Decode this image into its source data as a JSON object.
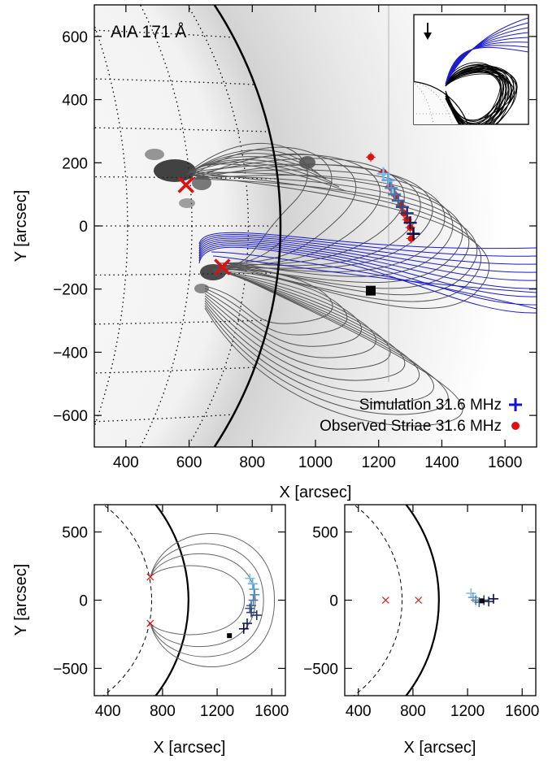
{
  "figure": {
    "main_panel": {
      "label": "AIA 171 Å",
      "xlabel": "X [arcsec]",
      "ylabel": "Y [arcsec]",
      "xlim": [
        300,
        1700
      ],
      "ylim": [
        -700,
        700
      ],
      "xticks": [
        "400",
        "600",
        "800",
        "1000",
        "1200",
        "1400",
        "1600"
      ],
      "yticks": [
        "600",
        "400",
        "200",
        "0",
        "−200",
        "−400",
        "−600"
      ],
      "legend": [
        {
          "label": "Simulation 31.6 MHz",
          "marker": "plus",
          "color": "#1515d0"
        },
        {
          "label": "Observed Striae 31.6 MHz",
          "marker": "dot",
          "color": "#e01010"
        }
      ],
      "legend_position": "bottom-right",
      "inset_icon": "arrow-down-icon"
    },
    "bottom_left_panel": {
      "xlabel": "X [arcsec]",
      "ylabel": "Y [arcsec]",
      "xticks": [
        "400",
        "800",
        "1200",
        "1600"
      ],
      "yticks": [
        "500",
        "0",
        "−500"
      ]
    },
    "bottom_right_panel": {
      "xlabel": "X [arcsec]",
      "xticks": [
        "400",
        "800",
        "1200",
        "1600"
      ],
      "yticks": [
        "500",
        "0",
        "−500"
      ]
    }
  },
  "chart_data": [
    {
      "type": "scatter",
      "panel": "main",
      "xlim": [
        300,
        1700
      ],
      "ylim": [
        -700,
        700
      ],
      "series": [
        {
          "name": "Simulation 31.6 MHz",
          "marker": "plus",
          "x": [
            1215,
            1230,
            1240,
            1250,
            1262,
            1275,
            1290,
            1300,
            1310
          ],
          "y": [
            165,
            145,
            120,
            100,
            80,
            60,
            40,
            10,
            -25
          ]
        },
        {
          "name": "Observed Striae 31.6 MHz",
          "marker": "dot",
          "x": [
            1175,
            1215,
            1235,
            1255,
            1270,
            1280,
            1290,
            1300,
            1303
          ],
          "y": [
            218,
            170,
            125,
            95,
            65,
            40,
            20,
            -5,
            -40
          ]
        }
      ],
      "x_markers": [
        {
          "x": 590,
          "y": 130
        },
        {
          "x": 705,
          "y": -130
        }
      ],
      "square_marker": {
        "x": 1175,
        "y": -205
      },
      "grid": true
    },
    {
      "type": "scatter",
      "panel": "bottom-left",
      "xlim": [
        300,
        1700
      ],
      "ylim": [
        -700,
        700
      ],
      "x_markers": [
        {
          "x": 710,
          "y": 170
        },
        {
          "x": 710,
          "y": -170
        }
      ],
      "plus_x": [
        1440,
        1460,
        1470,
        1475,
        1465,
        1450,
        1440,
        1450,
        1490,
        1420,
        1395
      ],
      "plus_y": [
        160,
        120,
        80,
        40,
        0,
        -40,
        -60,
        -90,
        -110,
        -170,
        -210
      ],
      "square_marker": {
        "x": 1290,
        "y": -260
      }
    },
    {
      "type": "scatter",
      "panel": "bottom-right",
      "xlim": [
        300,
        1700
      ],
      "ylim": [
        -700,
        700
      ],
      "x_markers": [
        {
          "x": 600,
          "y": 0
        },
        {
          "x": 840,
          "y": 0
        }
      ],
      "plus_x": [
        1225,
        1240,
        1260,
        1285,
        1320,
        1355,
        1390
      ],
      "plus_y": [
        50,
        20,
        0,
        -15,
        0,
        -10,
        10
      ],
      "square_marker": {
        "x": 1305,
        "y": -5
      }
    }
  ]
}
